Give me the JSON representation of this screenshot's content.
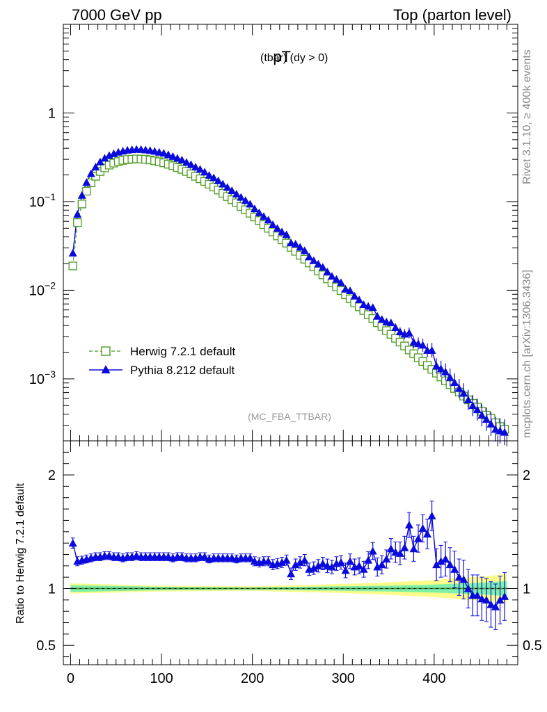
{
  "header": {
    "left": "7000 GeV pp",
    "right": "Top (parton level)"
  },
  "side_labels": {
    "rivet": "Rivet 3.1.10, ≥ 400k events",
    "mcplots": "mcplots.cern.ch [arXiv:1306.3436]"
  },
  "chart_data": [
    {
      "type": "line",
      "title_main": "pT",
      "title_sub": "(tbar) (dy > 0)",
      "watermark": "(MC_FBA_TTBAR)",
      "y_scale": "log",
      "ylim": [
        0.0002,
        10
      ],
      "xlim": [
        -8,
        492
      ],
      "y_ticks": [
        {
          "v": 0.001,
          "base": "10",
          "exp": "−3"
        },
        {
          "v": 0.01,
          "base": "10",
          "exp": "−2"
        },
        {
          "v": 0.1,
          "base": "10",
          "exp": "−1"
        },
        {
          "v": 1,
          "base": "1",
          "exp": ""
        }
      ],
      "legend_position": "lower-left",
      "x": [
        2.5,
        7.5,
        12.5,
        17.5,
        22.5,
        27.5,
        32.5,
        37.5,
        42.5,
        47.5,
        52.5,
        57.5,
        62.5,
        67.5,
        72.5,
        77.5,
        82.5,
        87.5,
        92.5,
        97.5,
        102.5,
        107.5,
        112.5,
        117.5,
        122.5,
        127.5,
        132.5,
        137.5,
        142.5,
        147.5,
        152.5,
        157.5,
        162.5,
        167.5,
        172.5,
        177.5,
        182.5,
        187.5,
        192.5,
        197.5,
        202.5,
        207.5,
        212.5,
        217.5,
        222.5,
        227.5,
        232.5,
        237.5,
        242.5,
        247.5,
        252.5,
        257.5,
        262.5,
        267.5,
        272.5,
        277.5,
        282.5,
        287.5,
        292.5,
        297.5,
        302.5,
        307.5,
        312.5,
        317.5,
        322.5,
        327.5,
        332.5,
        337.5,
        342.5,
        347.5,
        352.5,
        357.5,
        362.5,
        367.5,
        372.5,
        377.5,
        382.5,
        387.5,
        392.5,
        397.5,
        402.5,
        407.5,
        412.5,
        417.5,
        422.5,
        427.5,
        432.5,
        437.5,
        442.5,
        447.5,
        452.5,
        457.5,
        462.5,
        467.5,
        472.5,
        477.5
      ],
      "series": [
        {
          "name": "Herwig 7.2.1 default",
          "color": "#4a9a1f",
          "marker": "open-square",
          "dashed": true,
          "values": [
            0.0188,
            0.058,
            0.094,
            0.131,
            0.163,
            0.193,
            0.219,
            0.24,
            0.258,
            0.272,
            0.283,
            0.292,
            0.298,
            0.301,
            0.303,
            0.302,
            0.3,
            0.295,
            0.289,
            0.282,
            0.274,
            0.264,
            0.254,
            0.242,
            0.231,
            0.219,
            0.206,
            0.193,
            0.181,
            0.169,
            0.157,
            0.146,
            0.135,
            0.124,
            0.114,
            0.105,
            0.097,
            0.088,
            0.081,
            0.074,
            0.067,
            0.061,
            0.055,
            0.05,
            0.0455,
            0.041,
            0.037,
            0.034,
            0.0305,
            0.0275,
            0.0248,
            0.0224,
            0.0203,
            0.0183,
            0.0165,
            0.0149,
            0.0134,
            0.0121,
            0.0109,
            0.0099,
            0.0089,
            0.008,
            0.0072,
            0.0065,
            0.0059,
            0.0053,
            0.0048,
            0.0043,
            0.0039,
            0.0035,
            0.00318,
            0.00287,
            0.0026,
            0.00235,
            0.00212,
            0.00192,
            0.00173,
            0.00157,
            0.00142,
            0.00128,
            0.00116,
            0.00105,
            0.00095,
            0.00086,
            0.00078,
            0.00071,
            0.00064,
            0.00058,
            0.00053,
            0.00048,
            0.00043,
            0.00039,
            0.00036,
            0.00032,
            0.00029,
            0.00027
          ]
        },
        {
          "name": "Pythia 8.212 default",
          "color": "#0a0adc",
          "marker": "filled-triangle",
          "dashed": false,
          "values": [
            0.0263,
            0.072,
            0.118,
            0.165,
            0.207,
            0.246,
            0.281,
            0.31,
            0.332,
            0.348,
            0.362,
            0.372,
            0.381,
            0.386,
            0.39,
            0.388,
            0.384,
            0.378,
            0.37,
            0.361,
            0.352,
            0.339,
            0.324,
            0.309,
            0.295,
            0.278,
            0.262,
            0.246,
            0.232,
            0.216,
            0.198,
            0.186,
            0.172,
            0.158,
            0.145,
            0.133,
            0.122,
            0.112,
            0.103,
            0.094,
            0.083,
            0.075,
            0.068,
            0.062,
            0.055,
            0.05,
            0.0456,
            0.0425,
            0.0343,
            0.0333,
            0.0306,
            0.028,
            0.0238,
            0.0216,
            0.0198,
            0.0182,
            0.0161,
            0.0144,
            0.0133,
            0.0122,
            0.0103,
            0.0099,
            0.0086,
            0.0078,
            0.0069,
            0.0066,
            0.0064,
            0.0051,
            0.0047,
            0.0044,
            0.0043,
            0.0038,
            0.0034,
            0.0032,
            0.0033,
            0.0026,
            0.0025,
            0.0024,
            0.0021,
            0.0021,
            0.0014,
            0.0013,
            0.0012,
            0.00104,
            0.00091,
            0.00078,
            0.00069,
            0.00058,
            0.0005,
            0.00045,
            0.00039,
            0.00035,
            0.00031,
            0.00027,
            0.00026,
            0.00025
          ]
        }
      ]
    },
    {
      "type": "line",
      "ylabel": "Ratio to Herwig 7.2.1 default",
      "xlim": [
        -8,
        492
      ],
      "ylim": [
        0.33,
        2.3
      ],
      "y_ticks": [
        0.5,
        1,
        2
      ],
      "x_ticks": [
        0,
        100,
        200,
        300,
        400
      ],
      "reference": 1,
      "band_half_width": {
        "x": [
          0,
          100,
          200,
          250,
          300,
          350,
          400,
          430,
          460,
          480
        ],
        "green": [
          0.03,
          0.015,
          0.01,
          0.015,
          0.02,
          0.025,
          0.035,
          0.045,
          0.055,
          0.065
        ],
        "yellow": [
          0.045,
          0.025,
          0.02,
          0.03,
          0.04,
          0.055,
          0.075,
          0.095,
          0.11,
          0.13
        ]
      },
      "series": [
        {
          "name": "Pythia 8.212 default",
          "color": "#0a0adc",
          "values": [
            1.4,
            1.24,
            1.25,
            1.26,
            1.27,
            1.28,
            1.28,
            1.29,
            1.29,
            1.28,
            1.28,
            1.27,
            1.28,
            1.28,
            1.29,
            1.28,
            1.28,
            1.28,
            1.28,
            1.28,
            1.28,
            1.28,
            1.27,
            1.28,
            1.28,
            1.27,
            1.27,
            1.27,
            1.28,
            1.28,
            1.26,
            1.27,
            1.27,
            1.27,
            1.27,
            1.27,
            1.26,
            1.27,
            1.27,
            1.27,
            1.24,
            1.23,
            1.24,
            1.24,
            1.21,
            1.22,
            1.23,
            1.25,
            1.13,
            1.21,
            1.23,
            1.25,
            1.17,
            1.18,
            1.2,
            1.22,
            1.2,
            1.19,
            1.22,
            1.23,
            1.16,
            1.24,
            1.19,
            1.2,
            1.17,
            1.25,
            1.33,
            1.19,
            1.21,
            1.26,
            1.35,
            1.32,
            1.31,
            1.36,
            1.56,
            1.35,
            1.44,
            1.53,
            1.48,
            1.64,
            1.21,
            1.24,
            1.26,
            1.21,
            1.17,
            1.1,
            1.08,
            1.0,
            0.94,
            0.94,
            0.91,
            0.9,
            0.86,
            0.84,
            0.9,
            0.93
          ],
          "errors": [
            0.045,
            0.04,
            0.035,
            0.035,
            0.035,
            0.035,
            0.035,
            0.035,
            0.035,
            0.035,
            0.035,
            0.035,
            0.035,
            0.035,
            0.035,
            0.035,
            0.035,
            0.035,
            0.035,
            0.035,
            0.035,
            0.035,
            0.035,
            0.035,
            0.035,
            0.035,
            0.035,
            0.035,
            0.035,
            0.035,
            0.035,
            0.035,
            0.035,
            0.035,
            0.035,
            0.035,
            0.035,
            0.035,
            0.035,
            0.035,
            0.04,
            0.04,
            0.04,
            0.04,
            0.045,
            0.045,
            0.045,
            0.045,
            0.05,
            0.05,
            0.05,
            0.05,
            0.055,
            0.055,
            0.055,
            0.055,
            0.06,
            0.06,
            0.06,
            0.06,
            0.065,
            0.065,
            0.07,
            0.07,
            0.07,
            0.075,
            0.075,
            0.08,
            0.08,
            0.08,
            0.09,
            0.09,
            0.1,
            0.1,
            0.11,
            0.11,
            0.12,
            0.12,
            0.13,
            0.13,
            0.14,
            0.14,
            0.15,
            0.15,
            0.16,
            0.16,
            0.17,
            0.17,
            0.18,
            0.18,
            0.19,
            0.19,
            0.2,
            0.2,
            0.21,
            0.21
          ]
        }
      ]
    }
  ]
}
